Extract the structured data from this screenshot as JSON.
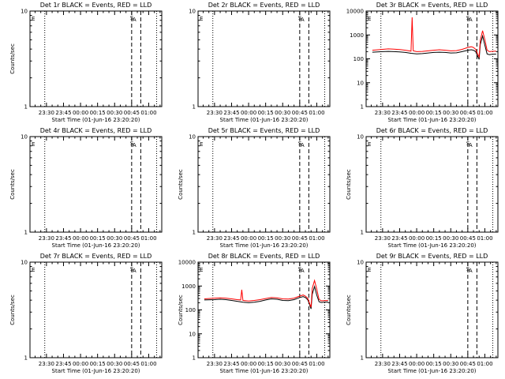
{
  "chart_data": [
    {
      "type": "line",
      "title": "Det 1r BLACK = Events, RED = LLD",
      "ylabel": "Counts/sec",
      "xlabel": "Start Time (01-Jun-16 23:20:20)",
      "yscale": "log",
      "x_ticks": [
        "23:30",
        "23:45",
        "00:00",
        "00:15",
        "00:30",
        "00:45",
        "01:00"
      ],
      "y_ticks": [
        "1",
        "10"
      ],
      "ylim": [
        1,
        10
      ],
      "flags": [
        "E",
        "S",
        "A"
      ],
      "series": []
    },
    {
      "type": "line",
      "title": "Det 2r BLACK = Events, RED = LLD",
      "ylabel": "",
      "xlabel": "Start Time (01-Jun-16 23:20:20)",
      "yscale": "log",
      "x_ticks": [
        "23:30",
        "23:45",
        "00:00",
        "00:15",
        "00:30",
        "00:45",
        "01:00"
      ],
      "y_ticks": [
        "1",
        "10"
      ],
      "ylim": [
        1,
        10
      ],
      "flags": [
        "E",
        "S",
        "A"
      ],
      "series": []
    },
    {
      "type": "line",
      "title": "Det 3r BLACK = Events, RED = LLD",
      "ylabel": "",
      "xlabel": "Start Time (01-Jun-16 23:20:20)",
      "yscale": "log",
      "x_ticks": [
        "23:30",
        "23:45",
        "00:00",
        "00:15",
        "00:30",
        "00:45",
        "01:00"
      ],
      "y_ticks": [
        "1",
        "10",
        "100",
        "1000",
        "10000"
      ],
      "ylim": [
        1,
        10000
      ],
      "flags": [
        "E",
        "S",
        "A"
      ],
      "series": [
        {
          "color": "#000000",
          "x": [
            -9,
            0,
            5,
            10,
            15,
            20,
            25,
            30,
            35,
            40,
            45,
            50,
            55,
            60,
            65,
            70,
            75,
            78,
            80,
            82,
            83,
            84,
            85,
            86,
            88,
            90,
            92,
            94,
            96,
            100
          ],
          "y": [
            190,
            200,
            205,
            200,
            195,
            185,
            170,
            160,
            165,
            175,
            185,
            190,
            185,
            175,
            178,
            200,
            230,
            240,
            230,
            200,
            150,
            120,
            95,
            400,
            900,
            380,
            160,
            150,
            155,
            158
          ]
        },
        {
          "color": "#ff0000",
          "x": [
            -9,
            0,
            5,
            10,
            15,
            20,
            25,
            26,
            27,
            30,
            35,
            40,
            45,
            50,
            55,
            60,
            65,
            70,
            75,
            78,
            80,
            82,
            83,
            84,
            85,
            86,
            88,
            90,
            92,
            94,
            96,
            100
          ],
          "y": [
            230,
            250,
            260,
            255,
            245,
            230,
            210,
            5500,
            215,
            200,
            205,
            215,
            230,
            240,
            230,
            215,
            220,
            250,
            300,
            320,
            300,
            250,
            190,
            150,
            120,
            600,
            1500,
            650,
            230,
            200,
            205,
            210
          ]
        }
      ]
    },
    {
      "type": "line",
      "title": "Det 4r BLACK = Events, RED = LLD",
      "ylabel": "Counts/sec",
      "xlabel": "Start Time (01-Jun-16 23:20:20)",
      "yscale": "log",
      "x_ticks": [
        "23:30",
        "23:45",
        "00:00",
        "00:15",
        "00:30",
        "00:45",
        "01:00"
      ],
      "y_ticks": [
        "1",
        "10"
      ],
      "ylim": [
        1,
        10
      ],
      "flags": [
        "E",
        "S",
        "A"
      ],
      "series": []
    },
    {
      "type": "line",
      "title": "Det 5r BLACK = Events, RED = LLD",
      "ylabel": "Counts/sec",
      "xlabel": "Start Time (01-Jun-16 23:20:20)",
      "yscale": "log",
      "x_ticks": [
        "23:30",
        "23:45",
        "00:00",
        "00:15",
        "00:30",
        "00:45",
        "01:00"
      ],
      "y_ticks": [
        "1",
        "10"
      ],
      "ylim": [
        1,
        10
      ],
      "flags": [
        "E",
        "S",
        "A"
      ],
      "series": []
    },
    {
      "type": "line",
      "title": "Det 6r BLACK = Events, RED = LLD",
      "ylabel": "Counts/sec",
      "xlabel": "Start Time (01-Jun-16 23:20:20)",
      "yscale": "log",
      "x_ticks": [
        "23:30",
        "23:45",
        "00:00",
        "00:15",
        "00:30",
        "00:45",
        "01:00"
      ],
      "y_ticks": [
        "1",
        "10"
      ],
      "ylim": [
        1,
        10
      ],
      "flags": [
        "E",
        "S",
        "A"
      ],
      "series": []
    },
    {
      "type": "line",
      "title": "Det 7r BLACK = Events, RED = LLD",
      "ylabel": "Counts/sec",
      "xlabel": "Start Time (01-Jun-16 23:20:20)",
      "yscale": "log",
      "x_ticks": [
        "23:30",
        "23:45",
        "00:00",
        "00:15",
        "00:30",
        "00:45",
        "01:00"
      ],
      "y_ticks": [
        "1",
        "10"
      ],
      "ylim": [
        1,
        10
      ],
      "flags": [
        "E",
        "S",
        "A"
      ],
      "series": []
    },
    {
      "type": "line",
      "title": "Det 8r BLACK = Events, RED = LLD",
      "ylabel": "Counts/sec",
      "xlabel": "Start Time (01-Jun-16 23:20:20)",
      "yscale": "log",
      "x_ticks": [
        "23:30",
        "23:45",
        "00:00",
        "00:15",
        "00:30",
        "00:45",
        "01:00"
      ],
      "y_ticks": [
        "1",
        "10",
        "100",
        "1000",
        "10000"
      ],
      "ylim": [
        1,
        10000
      ],
      "flags": [
        "E",
        "S",
        "A"
      ],
      "series": [
        {
          "color": "#000000",
          "x": [
            -9,
            0,
            5,
            10,
            15,
            20,
            25,
            30,
            35,
            40,
            45,
            50,
            55,
            60,
            65,
            70,
            75,
            78,
            80,
            82,
            83,
            84,
            85,
            86,
            88,
            90,
            92,
            94,
            96,
            100
          ],
          "y": [
            260,
            270,
            280,
            270,
            250,
            230,
            210,
            200,
            210,
            230,
            260,
            290,
            280,
            250,
            245,
            270,
            330,
            360,
            330,
            270,
            210,
            150,
            110,
            450,
            950,
            420,
            220,
            205,
            210,
            215
          ]
        },
        {
          "color": "#ff0000",
          "x": [
            -9,
            0,
            5,
            10,
            15,
            20,
            23,
            24,
            25,
            30,
            35,
            40,
            45,
            50,
            55,
            60,
            65,
            70,
            75,
            78,
            80,
            82,
            83,
            84,
            85,
            86,
            88,
            90,
            92,
            94,
            96,
            100
          ],
          "y": [
            290,
            310,
            320,
            310,
            290,
            270,
            260,
            700,
            250,
            235,
            250,
            270,
            300,
            330,
            320,
            290,
            285,
            310,
            380,
            420,
            380,
            310,
            230,
            170,
            130,
            800,
            1700,
            750,
            280,
            240,
            245,
            250
          ]
        }
      ]
    },
    {
      "type": "line",
      "title": "Det 9r BLACK = Events, RED = LLD",
      "ylabel": "Counts/sec",
      "xlabel": "Start Time (01-Jun-16 23:20:20)",
      "yscale": "log",
      "x_ticks": [
        "23:30",
        "23:45",
        "00:00",
        "00:15",
        "00:30",
        "00:45",
        "01:00"
      ],
      "y_ticks": [
        "1",
        "10"
      ],
      "ylim": [
        1,
        10
      ],
      "flags": [
        "E",
        "S",
        "A"
      ],
      "series": []
    }
  ]
}
